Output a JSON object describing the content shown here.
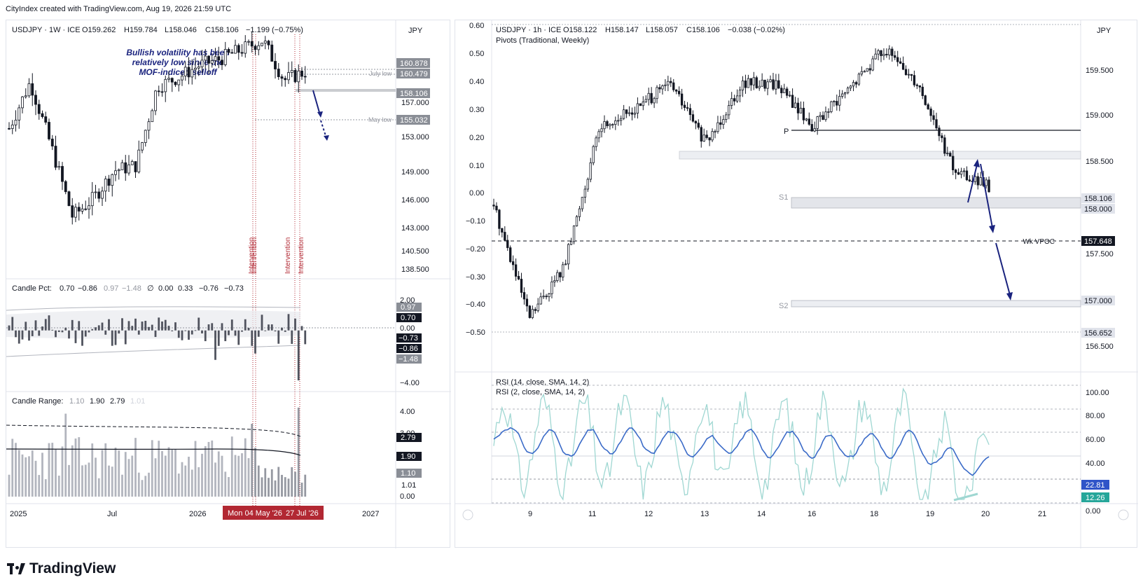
{
  "header": {
    "credit": "CityIndex created with TradingView.com, Aug 19, 2026 21:59 UTC"
  },
  "footer": {
    "brand": "TradingView"
  },
  "colors": {
    "candle": "#131722",
    "annotation_text": "#1a237e",
    "arrow": "#1a237e",
    "intervention": "#b22833",
    "rsi14": "#3b6bc8",
    "rsi2": "#9fd7d2",
    "price_tag": "#8a8e96",
    "marker_badge": "#b22833"
  },
  "weekly_chart": {
    "legend": "USDJPY · 1W · ICE",
    "ohlc": {
      "open": "O159.262",
      "high": "H159.784",
      "low": "L158.046",
      "close": "C158.106",
      "change": "−1.199 (−0.75%)"
    },
    "currency": "JPY",
    "note": "Bullish volatility has been relatively low since the MOF-indiced selloff",
    "note_lines": [
      "Bullish volatility has been",
      "relatively low since the",
      "MOF-indiced selloff"
    ],
    "level_labels": {
      "july_low": "July low",
      "may_low": "May low"
    },
    "price_axis": [
      "157.000",
      "153.000",
      "149.000",
      "146.000",
      "143.000",
      "140.500",
      "138.500"
    ],
    "price_tags": [
      "160.878",
      "160.479",
      "158.106",
      "155.032"
    ],
    "intervention_labels": [
      "Intervention",
      "Intervention",
      "Intervention",
      "Intervention"
    ],
    "x_axis": [
      "2025",
      "Jul",
      "2026",
      "2027"
    ],
    "x_markers": [
      "Mon 04 May '26",
      "27 Jul '26"
    ]
  },
  "candle_pct": {
    "legend_name": "Candle Pct:",
    "values": [
      "0.70",
      "−0.86",
      "0.97",
      "−1.48",
      "∅",
      "0.00",
      "0.33",
      "−0.76",
      "−0.73"
    ],
    "axis": [
      "2.00",
      "0.00",
      "−4.00"
    ],
    "tags": [
      "0.97",
      "0.70",
      "−0.73",
      "−0.86",
      "−1.48"
    ]
  },
  "candle_range": {
    "legend_name": "Candle Range:",
    "values": [
      "1.10",
      "1.90",
      "2.79",
      "1.01"
    ],
    "axis": [
      "4.00",
      "0.00"
    ],
    "axis_partial": "3.00",
    "tags": [
      "2.79",
      "1.90",
      "1.10",
      "1.01"
    ]
  },
  "hourly_chart": {
    "legend": "USDJPY · 1h · ICE",
    "ohlc": {
      "open": "O158.122",
      "high": "H158.147",
      "low": "L158.057",
      "close": "C158.106",
      "change": "−0.038 (−0.02%)"
    },
    "pivots_legend": "Pivots (Traditional, Weekly)",
    "currency": "JPY",
    "left_axis": [
      "0.60",
      "0.50",
      "0.40",
      "0.30",
      "0.20",
      "0.10",
      "0.00",
      "−0.10",
      "−0.20",
      "−0.30",
      "−0.40",
      "−0.50"
    ],
    "right_axis": [
      "159.500",
      "159.000",
      "158.500",
      "157.500",
      "156.500"
    ],
    "price_tags": [
      "158.106",
      "158.000",
      "157.648",
      "157.000",
      "156.652"
    ],
    "pivot_labels": {
      "p": "P",
      "s1": "S1",
      "s2": "S2"
    },
    "vpoc_label": "Wk VPOC",
    "x_axis": [
      "9",
      "11",
      "12",
      "13",
      "14",
      "16",
      "18",
      "19",
      "20",
      "21"
    ]
  },
  "rsi": {
    "legend_14": "RSI (14, close, SMA, 14, 2)",
    "legend_2": "RSI (2, close, SMA, 14, 2)",
    "axis": [
      "100.00",
      "80.00",
      "60.00",
      "40.00",
      "0.00"
    ],
    "tags": [
      "22.81",
      "12.26"
    ]
  },
  "chart_data": [
    {
      "type": "candlestick",
      "title": "USDJPY · 1W · ICE",
      "ylabel": "JPY",
      "ylim": [
        136.5,
        162.5
      ],
      "x_range": [
        "2024-11",
        "2027-03"
      ],
      "approx_close_path": [
        {
          "x": "2024-11",
          "y": 152.0
        },
        {
          "x": "2025-01",
          "y": 157.0
        },
        {
          "x": "2025-02",
          "y": 150.0
        },
        {
          "x": "2025-04",
          "y": 142.5
        },
        {
          "x": "2025-05",
          "y": 144.5
        },
        {
          "x": "2025-07",
          "y": 147.5
        },
        {
          "x": "2025-09",
          "y": 148.0
        },
        {
          "x": "2025-11",
          "y": 156.5
        },
        {
          "x": "2026-01",
          "y": 157.5
        },
        {
          "x": "2026-03",
          "y": 158.8
        },
        {
          "x": "2026-05",
          "y": 159.5
        },
        {
          "x": "2026-06",
          "y": 160.5
        },
        {
          "x": "2026-07",
          "y": 161.5
        },
        {
          "x": "2026-07-27",
          "y": 157.2
        },
        {
          "x": "2026-08-19",
          "y": 158.106
        }
      ],
      "levels": [
        {
          "label": "July low",
          "y": 160.479
        },
        {
          "label": "May low",
          "y": 155.032
        }
      ],
      "markers": [
        {
          "label": "Intervention",
          "x": "2026-05-04"
        },
        {
          "label": "Intervention",
          "x": "2026-07-27"
        }
      ],
      "last_price": 158.106
    },
    {
      "type": "bar",
      "title": "Candle Pct",
      "ylim": [
        -4.5,
        2.5
      ],
      "values": [
        0.7,
        -0.86,
        0.97,
        -1.48,
        0.0,
        0.33,
        -0.76,
        -0.73
      ],
      "notable": {
        "2026-07-27": -3.9
      }
    },
    {
      "type": "bar",
      "title": "Candle Range",
      "ylim": [
        0,
        4.5
      ],
      "values": [
        1.1,
        1.9,
        2.79,
        1.01
      ],
      "notable": {
        "2026-07-27": 4.4
      }
    },
    {
      "type": "candlestick",
      "title": "USDJPY · 1h · ICE",
      "ylabel": "JPY",
      "ylim": [
        156.2,
        159.9
      ],
      "x_range": [
        "Aug 8",
        "Aug 21"
      ],
      "approx_close_path": [
        {
          "x": "Aug 8",
          "y": 157.9
        },
        {
          "x": "Aug 8",
          "y": 156.6
        },
        {
          "x": "Aug 9",
          "y": 157.2
        },
        {
          "x": "Aug 10",
          "y": 158.8
        },
        {
          "x": "Aug 11",
          "y": 159.0
        },
        {
          "x": "Aug 12",
          "y": 159.3
        },
        {
          "x": "Aug 12",
          "y": 158.6
        },
        {
          "x": "Aug 13",
          "y": 159.3
        },
        {
          "x": "Aug 14",
          "y": 159.3
        },
        {
          "x": "Aug 15",
          "y": 158.8
        },
        {
          "x": "Aug 16",
          "y": 159.2
        },
        {
          "x": "Aug 18",
          "y": 159.7
        },
        {
          "x": "Aug 19",
          "y": 159.3
        },
        {
          "x": "Aug 19",
          "y": 158.3
        },
        {
          "x": "Aug 19",
          "y": 158.106
        }
      ],
      "pivots": {
        "P": 158.86,
        "S1": 158.106,
        "S2": 157.0
      },
      "wk_vpoc": 157.648,
      "support_levels": [
        158.0,
        156.652
      ],
      "last_price": 158.106
    },
    {
      "type": "line",
      "title": "RSI",
      "ylim": [
        0,
        100
      ],
      "series": [
        {
          "name": "RSI (14, close, SMA, 14, 2)",
          "last": 22.81
        },
        {
          "name": "RSI (2, close, SMA, 14, 2)",
          "last": 12.26
        }
      ]
    }
  ]
}
